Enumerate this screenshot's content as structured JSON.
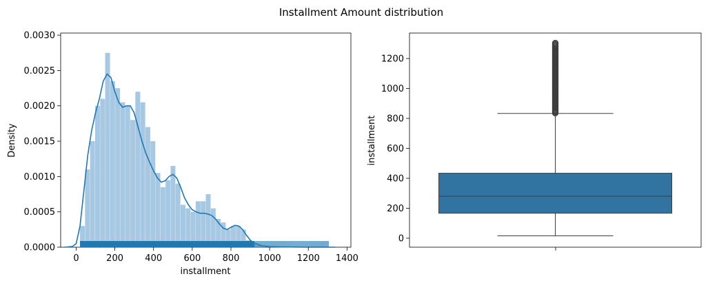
{
  "figure": {
    "title": "Installment Amount distribution"
  },
  "chart_data": [
    {
      "type": "histogram",
      "xlabel": "installment",
      "ylabel": "Density",
      "xlim": [
        -80,
        1420
      ],
      "ylim": [
        0,
        0.00303
      ],
      "x_ticks": [
        0,
        200,
        400,
        600,
        800,
        1000,
        1200,
        1400
      ],
      "y_ticks": [
        0.0,
        0.0005,
        0.001,
        0.0015,
        0.002,
        0.0025,
        0.003
      ],
      "y_tick_labels": [
        "0.0000",
        "0.0005",
        "0.0010",
        "0.0015",
        "0.0020",
        "0.0025",
        "0.0030"
      ],
      "hist_color": "#a6c8e2",
      "line_color": "#1f77b4",
      "rug_color": "#1f77b4",
      "hist_bins": [
        {
          "x0": 20,
          "x1": 46,
          "density": 0.0003
        },
        {
          "x0": 46,
          "x1": 72,
          "density": 0.0011
        },
        {
          "x0": 72,
          "x1": 98,
          "density": 0.0015
        },
        {
          "x0": 98,
          "x1": 124,
          "density": 0.002
        },
        {
          "x0": 124,
          "x1": 150,
          "density": 0.0021
        },
        {
          "x0": 150,
          "x1": 176,
          "density": 0.00275
        },
        {
          "x0": 176,
          "x1": 202,
          "density": 0.00235
        },
        {
          "x0": 202,
          "x1": 228,
          "density": 0.00225
        },
        {
          "x0": 228,
          "x1": 254,
          "density": 0.00205
        },
        {
          "x0": 254,
          "x1": 280,
          "density": 0.002
        },
        {
          "x0": 280,
          "x1": 306,
          "density": 0.0018
        },
        {
          "x0": 306,
          "x1": 332,
          "density": 0.0022
        },
        {
          "x0": 332,
          "x1": 358,
          "density": 0.00205
        },
        {
          "x0": 358,
          "x1": 384,
          "density": 0.0017
        },
        {
          "x0": 384,
          "x1": 410,
          "density": 0.0015
        },
        {
          "x0": 410,
          "x1": 436,
          "density": 0.00105
        },
        {
          "x0": 436,
          "x1": 462,
          "density": 0.00085
        },
        {
          "x0": 462,
          "x1": 488,
          "density": 0.00095
        },
        {
          "x0": 488,
          "x1": 514,
          "density": 0.00115
        },
        {
          "x0": 514,
          "x1": 540,
          "density": 0.0009
        },
        {
          "x0": 540,
          "x1": 566,
          "density": 0.0006
        },
        {
          "x0": 566,
          "x1": 592,
          "density": 0.00055
        },
        {
          "x0": 592,
          "x1": 618,
          "density": 0.0005
        },
        {
          "x0": 618,
          "x1": 644,
          "density": 0.00065
        },
        {
          "x0": 644,
          "x1": 670,
          "density": 0.00065
        },
        {
          "x0": 670,
          "x1": 696,
          "density": 0.00075
        },
        {
          "x0": 696,
          "x1": 722,
          "density": 0.00055
        },
        {
          "x0": 722,
          "x1": 748,
          "density": 0.0004
        },
        {
          "x0": 748,
          "x1": 774,
          "density": 0.00035
        },
        {
          "x0": 774,
          "x1": 800,
          "density": 0.00025
        },
        {
          "x0": 800,
          "x1": 826,
          "density": 0.0003
        },
        {
          "x0": 826,
          "x1": 852,
          "density": 0.0003
        },
        {
          "x0": 852,
          "x1": 878,
          "density": 0.00025
        },
        {
          "x0": 878,
          "x1": 904,
          "density": 0.0001
        },
        {
          "x0": 904,
          "x1": 930,
          "density": 5e-05
        },
        {
          "x0": 930,
          "x1": 956,
          "density": 3e-05
        },
        {
          "x0": 956,
          "x1": 982,
          "density": 2e-05
        }
      ],
      "kde": {
        "x": [
          -60,
          -20,
          0,
          20,
          40,
          60,
          80,
          100,
          120,
          140,
          160,
          180,
          200,
          220,
          240,
          260,
          280,
          300,
          320,
          340,
          360,
          380,
          400,
          420,
          440,
          460,
          480,
          500,
          520,
          540,
          560,
          580,
          600,
          620,
          640,
          660,
          680,
          700,
          720,
          740,
          760,
          780,
          800,
          820,
          840,
          860,
          880,
          900,
          920,
          940,
          960,
          1000,
          1050,
          1100,
          1150,
          1200,
          1250,
          1300,
          1340
        ],
        "y": [
          0.0,
          1e-05,
          5e-05,
          0.0003,
          0.0008,
          0.0013,
          0.00165,
          0.0019,
          0.0021,
          0.00235,
          0.00245,
          0.0024,
          0.0022,
          0.00205,
          0.00198,
          0.002,
          0.002,
          0.0019,
          0.0017,
          0.0015,
          0.00133,
          0.0012,
          0.00108,
          0.00098,
          0.00092,
          0.00094,
          0.001,
          0.00103,
          0.00098,
          0.00085,
          0.0007,
          0.0006,
          0.00053,
          0.0005,
          0.00048,
          0.00048,
          0.00047,
          0.00045,
          0.0004,
          0.00033,
          0.00027,
          0.00025,
          0.00028,
          0.00031,
          0.0003,
          0.00025,
          0.00017,
          0.0001,
          6e-05,
          4e-05,
          2e-05,
          8e-06,
          4e-06,
          3e-06,
          2e-06,
          1e-06,
          5e-07,
          2e-07,
          0.0
        ]
      },
      "rug": {
        "x_min": 20,
        "x_dense_max": 920,
        "x_max": 1305
      }
    },
    {
      "type": "boxplot",
      "xlabel": "",
      "ylabel": "installment",
      "ylim": [
        -60,
        1370
      ],
      "y_ticks": [
        0,
        200,
        400,
        600,
        800,
        1000,
        1200
      ],
      "y_tick_labels": [
        "0",
        "200",
        "400",
        "600",
        "800",
        "1000",
        "1200"
      ],
      "box_color": "#3274a1",
      "whisker_low": 16,
      "q1": 167,
      "median": 280,
      "q3": 434,
      "whisker_high": 833,
      "outliers_min": 835,
      "outliers_max": 1305
    }
  ]
}
